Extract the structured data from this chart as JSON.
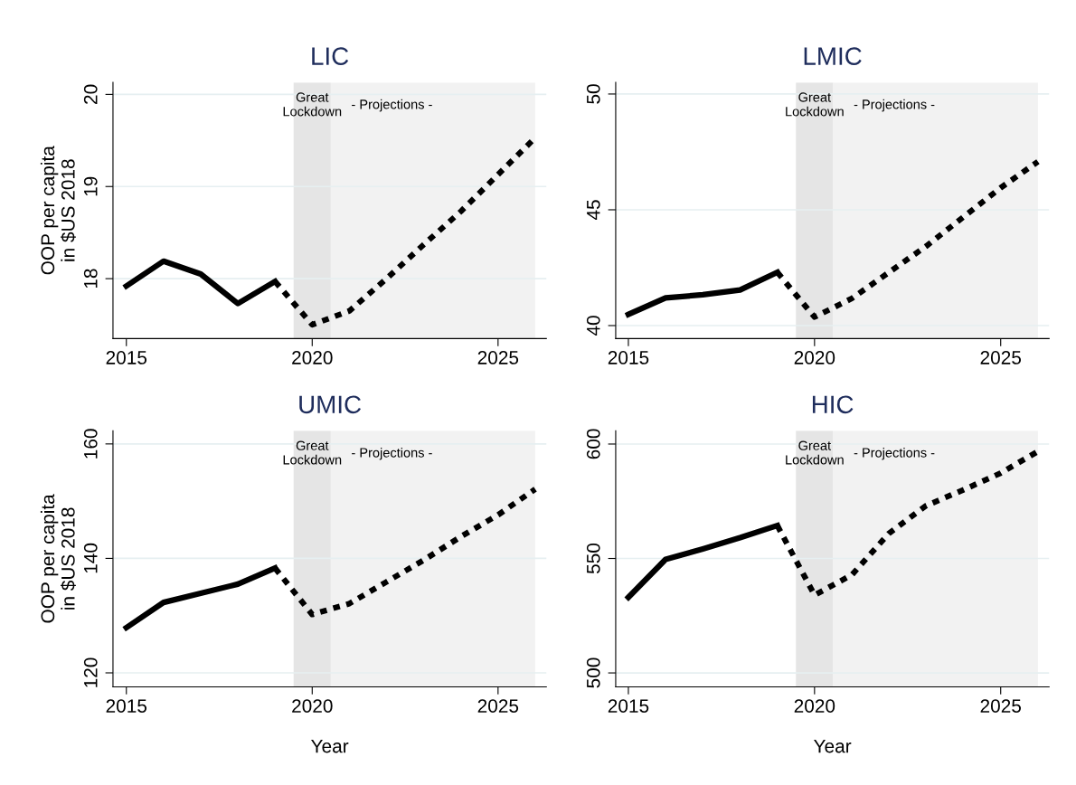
{
  "chart_data": [
    {
      "type": "line",
      "title": "LIC",
      "ylabel": "OOP per capita\nin $US 2018",
      "xlim": [
        2014.64,
        2026.3
      ],
      "xticks": [
        2015,
        2020,
        2025
      ],
      "ylim": [
        17.35,
        20.13
      ],
      "yticks": [
        18,
        19,
        20
      ],
      "grid": "y",
      "series": [
        {
          "color": "#000000",
          "line_style": "solid",
          "x": [
            2015,
            2016,
            2017,
            2018,
            2019
          ],
          "values": [
            17.92,
            18.19,
            18.05,
            17.73,
            17.97
          ]
        },
        {
          "color": "#000000",
          "line_style": "dotted",
          "x": [
            2019,
            2020,
            2021,
            2022,
            2023,
            2024,
            2025,
            2026
          ],
          "values": [
            17.97,
            17.5,
            17.65,
            18.0,
            18.37,
            18.73,
            19.13,
            19.53
          ]
        }
      ],
      "bands": [
        {
          "axis": "x",
          "from": 2019.5,
          "to": 2020.5,
          "label": "Great\nLockdown",
          "color": "#e5e5e5"
        },
        {
          "axis": "x",
          "from": 2020.5,
          "to": 2026,
          "label": "- Projections -",
          "color": "#f2f2f2"
        }
      ]
    },
    {
      "type": "line",
      "title": "LMIC",
      "xlim": [
        2014.66,
        2026.3
      ],
      "xticks": [
        2015,
        2020,
        2025
      ],
      "ylim": [
        39.44,
        50.5
      ],
      "yticks": [
        40,
        45,
        50
      ],
      "grid": "y",
      "series": [
        {
          "color": "#000000",
          "line_style": "solid",
          "x": [
            2015,
            2016,
            2017,
            2018,
            2019
          ],
          "values": [
            40.48,
            41.2,
            41.33,
            41.54,
            42.3
          ]
        },
        {
          "color": "#000000",
          "line_style": "dotted",
          "x": [
            2019,
            2020,
            2021,
            2022,
            2023,
            2024,
            2025,
            2026
          ],
          "values": [
            42.3,
            40.37,
            41.17,
            42.3,
            43.43,
            44.69,
            45.95,
            47.08
          ]
        }
      ],
      "bands": [
        {
          "axis": "x",
          "from": 2019.5,
          "to": 2020.5,
          "label": "Great\nLockdown",
          "color": "#e5e5e5"
        },
        {
          "axis": "x",
          "from": 2020.5,
          "to": 2026,
          "label": "- Projections -",
          "color": "#f2f2f2"
        }
      ]
    },
    {
      "type": "line",
      "title": "UMIC",
      "xlabel": "Year",
      "ylabel": "OOP per capita\nin $US 2018",
      "xlim": [
        2014.64,
        2026.3
      ],
      "xticks": [
        2015,
        2020,
        2025
      ],
      "ylim": [
        117.55,
        162.3
      ],
      "yticks": [
        120,
        140,
        160
      ],
      "grid": "y",
      "series": [
        {
          "color": "#000000",
          "line_style": "solid",
          "x": [
            2015,
            2016,
            2017,
            2018,
            2019
          ],
          "values": [
            127.9,
            132.3,
            133.9,
            135.5,
            138.3
          ]
        },
        {
          "color": "#000000",
          "line_style": "dotted",
          "x": [
            2019,
            2020,
            2021,
            2022,
            2023,
            2024,
            2025,
            2026
          ],
          "values": [
            138.3,
            130.2,
            132.1,
            135.9,
            139.7,
            143.8,
            147.6,
            152.1
          ]
        }
      ],
      "bands": [
        {
          "axis": "x",
          "from": 2019.5,
          "to": 2020.5,
          "label": "Great\nLockdown",
          "color": "#e5e5e5"
        },
        {
          "axis": "x",
          "from": 2020.5,
          "to": 2026,
          "label": "- Projections -",
          "color": "#f2f2f2"
        }
      ]
    },
    {
      "type": "line",
      "title": "HIC",
      "xlabel": "Year",
      "xlim": [
        2014.66,
        2026.3
      ],
      "xticks": [
        2015,
        2020,
        2025
      ],
      "ylim": [
        493.9,
        605.8
      ],
      "yticks": [
        500,
        550,
        600
      ],
      "grid": "y",
      "series": [
        {
          "color": "#000000",
          "line_style": "solid",
          "x": [
            2015,
            2016,
            2017,
            2018,
            2019
          ],
          "values": [
            533,
            549.6,
            554.2,
            559.1,
            564.4
          ]
        },
        {
          "color": "#000000",
          "line_style": "dotted",
          "x": [
            2019,
            2020,
            2021,
            2022,
            2023,
            2024,
            2025,
            2026
          ],
          "values": [
            564.4,
            534,
            542.8,
            561,
            573.1,
            580,
            587.3,
            596.8
          ]
        }
      ],
      "bands": [
        {
          "axis": "x",
          "from": 2019.5,
          "to": 2020.5,
          "label": "Great\nLockdown",
          "color": "#e5e5e5"
        },
        {
          "axis": "x",
          "from": 2020.5,
          "to": 2026,
          "label": "- Projections -",
          "color": "#f2f2f2"
        }
      ]
    }
  ]
}
